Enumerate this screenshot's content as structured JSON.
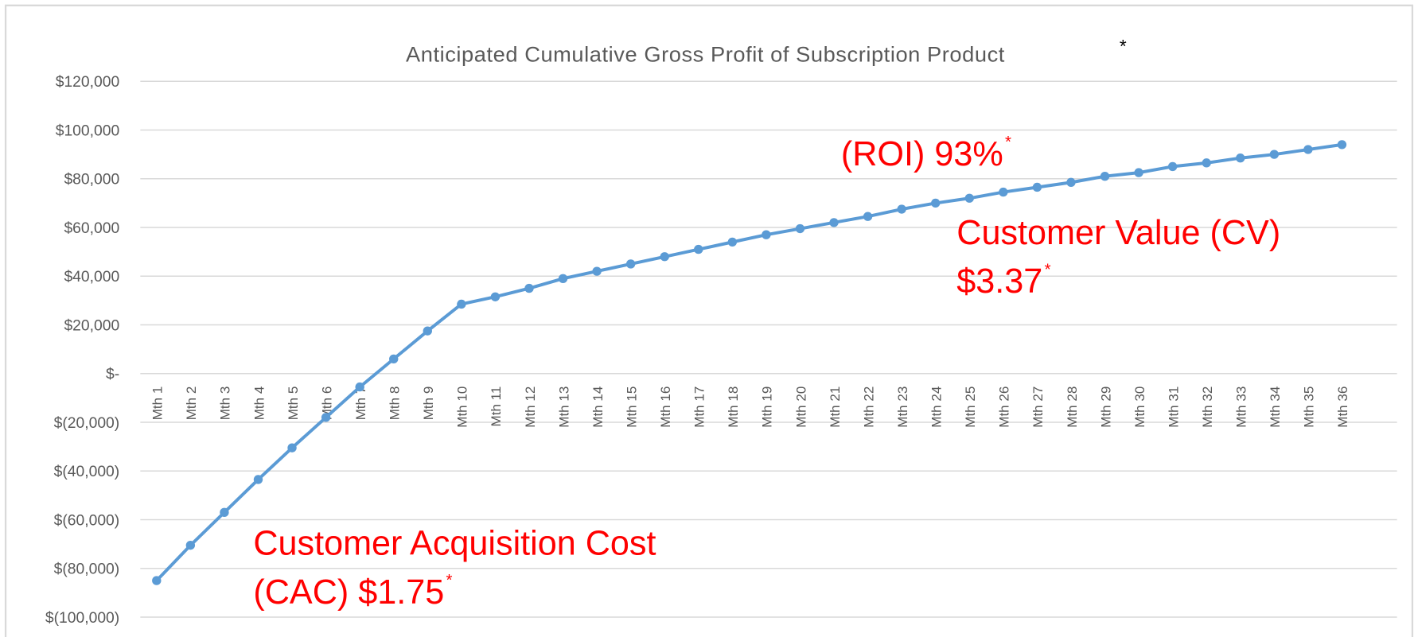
{
  "chart_data": {
    "type": "line",
    "title": "Anticipated Cumulative Gross Profit of Subscription Product",
    "title_mark": "*",
    "categories": [
      "Mth 1",
      "Mth 2",
      "Mth 3",
      "Mth 4",
      "Mth 5",
      "Mth 6",
      "Mth 7",
      "Mth 8",
      "Mth 9",
      "Mth 10",
      "Mth 11",
      "Mth 12",
      "Mth 13",
      "Mth 14",
      "Mth 15",
      "Mth 16",
      "Mth 17",
      "Mth 18",
      "Mth 19",
      "Mth 20",
      "Mth 21",
      "Mth 22",
      "Mth 23",
      "Mth 24",
      "Mth 25",
      "Mth 26",
      "Mth 27",
      "Mth 28",
      "Mth 29",
      "Mth 30",
      "Mth 31",
      "Mth 32",
      "Mth 33",
      "Mth 34",
      "Mth 35",
      "Mth 36"
    ],
    "values": [
      -85000,
      -70500,
      -57000,
      -43500,
      -30500,
      -18000,
      -5500,
      6000,
      17500,
      28500,
      31500,
      35000,
      39000,
      42000,
      45000,
      48000,
      51000,
      54000,
      57000,
      59500,
      62000,
      64500,
      67500,
      70000,
      72000,
      74500,
      76500,
      78500,
      81000,
      82500,
      85000,
      86500,
      88500,
      90000,
      92000,
      94000
    ],
    "color": "#5b9bd5",
    "ylim": [
      -100000,
      120000
    ],
    "yticks": [
      {
        "value": -100000,
        "label": "$(100,000)"
      },
      {
        "value": -80000,
        "label": "$(80,000)"
      },
      {
        "value": -60000,
        "label": "$(60,000)"
      },
      {
        "value": -40000,
        "label": "$(40,000)"
      },
      {
        "value": -20000,
        "label": "$(20,000)"
      },
      {
        "value": 0,
        "label": "$-"
      },
      {
        "value": 20000,
        "label": "$20,000"
      },
      {
        "value": 40000,
        "label": "$40,000"
      },
      {
        "value": 60000,
        "label": "$60,000"
      },
      {
        "value": 80000,
        "label": "$80,000"
      },
      {
        "value": 100000,
        "label": "$100,000"
      },
      {
        "value": 120000,
        "label": "$120,000"
      }
    ],
    "grid": true,
    "annotations": [
      {
        "lines": [
          "(ROI) 93%"
        ],
        "mark": "*"
      },
      {
        "lines": [
          "Customer Value (CV)",
          "$3.37"
        ],
        "mark": "*"
      },
      {
        "lines": [
          "Customer Acquisition Cost",
          "(CAC) $1.75"
        ],
        "mark": "*"
      }
    ]
  }
}
